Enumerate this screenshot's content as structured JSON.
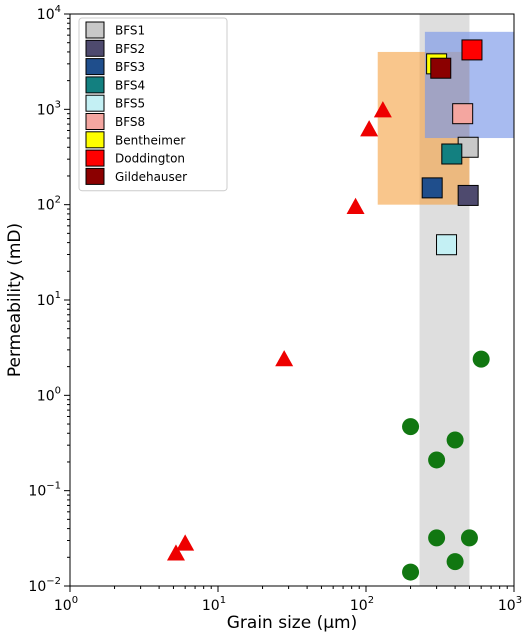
{
  "chart_data": {
    "type": "scatter",
    "xlabel": "Grain size (µm)",
    "ylabel": "Permeability (mD)",
    "x_scale": "log",
    "y_scale": "log",
    "xlim": [
      1,
      1000
    ],
    "ylim": [
      0.01,
      10000
    ],
    "x_ticks": [
      {
        "value": 1,
        "base": "10",
        "exp": "0"
      },
      {
        "value": 10,
        "base": "10",
        "exp": "1"
      },
      {
        "value": 100,
        "base": "10",
        "exp": "2"
      },
      {
        "value": 1000,
        "base": "10",
        "exp": "3"
      }
    ],
    "y_ticks": [
      {
        "value": 0.01,
        "base": "10",
        "exp": "−2"
      },
      {
        "value": 0.1,
        "base": "10",
        "exp": "−1"
      },
      {
        "value": 1,
        "base": "10",
        "exp": "0"
      },
      {
        "value": 10,
        "base": "10",
        "exp": "1"
      },
      {
        "value": 100,
        "base": "10",
        "exp": "2"
      },
      {
        "value": 1000,
        "base": "10",
        "exp": "3"
      },
      {
        "value": 10000,
        "base": "10",
        "exp": "4"
      }
    ],
    "grid": false,
    "legend_position": "top-left",
    "regions": [
      {
        "x": [
          230,
          500
        ],
        "y": [
          0.01,
          10000
        ],
        "color": "#c8c8c8",
        "opacity": 0.6
      },
      {
        "x": [
          120,
          500
        ],
        "y": [
          100,
          4000
        ],
        "color": "#f5a040",
        "opacity": 0.6
      },
      {
        "x": [
          250,
          1000
        ],
        "y": [
          500,
          6500
        ],
        "color": "#7a96e8",
        "opacity": 0.65
      }
    ],
    "series": [
      {
        "name": "BFS1",
        "marker": "square",
        "color": "#c8c8c8",
        "points": [
          {
            "x": 490,
            "y": 400
          }
        ]
      },
      {
        "name": "BFS2",
        "marker": "square",
        "color": "#4e4a6e",
        "points": [
          {
            "x": 490,
            "y": 125
          }
        ]
      },
      {
        "name": "BFS3",
        "marker": "square",
        "color": "#1f4e8c",
        "points": [
          {
            "x": 280,
            "y": 150
          }
        ]
      },
      {
        "name": "BFS4",
        "marker": "square",
        "color": "#138080",
        "points": [
          {
            "x": 380,
            "y": 340
          }
        ]
      },
      {
        "name": "BFS5",
        "marker": "square",
        "color": "#c4f0f4",
        "points": [
          {
            "x": 350,
            "y": 38
          }
        ]
      },
      {
        "name": "BFS8",
        "marker": "square",
        "color": "#f4a6a0",
        "points": [
          {
            "x": 450,
            "y": 900
          }
        ]
      },
      {
        "name": "Bentheimer",
        "marker": "square",
        "color": "#ffff00",
        "points": [
          {
            "x": 300,
            "y": 3000
          }
        ]
      },
      {
        "name": "Doddington",
        "marker": "square",
        "color": "#ff0000",
        "points": [
          {
            "x": 520,
            "y": 4200
          }
        ]
      },
      {
        "name": "Gildehauser",
        "marker": "square",
        "color": "#8b0000",
        "points": [
          {
            "x": 320,
            "y": 2700
          }
        ]
      },
      {
        "marker": "triangle",
        "color": "#ee0000",
        "points": [
          {
            "x": 5.2,
            "y": 0.022
          },
          {
            "x": 6,
            "y": 0.028
          },
          {
            "x": 28,
            "y": 2.4
          },
          {
            "x": 85,
            "y": 95
          },
          {
            "x": 105,
            "y": 620
          },
          {
            "x": 130,
            "y": 980
          }
        ]
      },
      {
        "marker": "circle",
        "color": "#117711",
        "points": [
          {
            "x": 200,
            "y": 0.014
          },
          {
            "x": 300,
            "y": 0.032
          },
          {
            "x": 400,
            "y": 0.018
          },
          {
            "x": 500,
            "y": 0.032
          },
          {
            "x": 200,
            "y": 0.47
          },
          {
            "x": 300,
            "y": 0.21
          },
          {
            "x": 400,
            "y": 0.34
          },
          {
            "x": 600,
            "y": 2.4
          }
        ]
      }
    ]
  }
}
